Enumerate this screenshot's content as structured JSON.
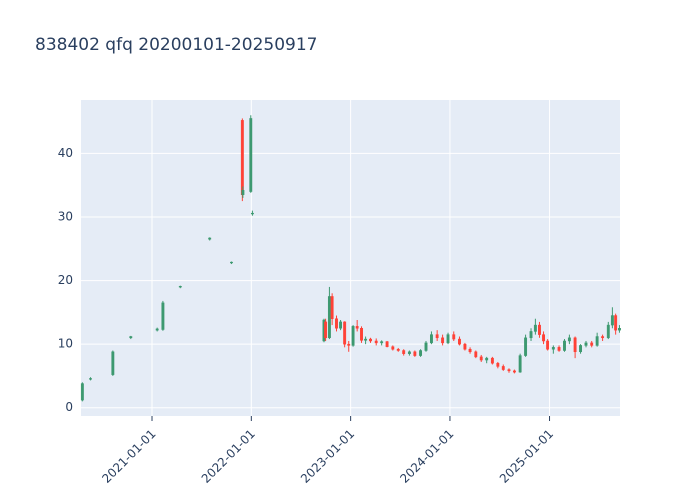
{
  "chart_data": {
    "type": "candlestick",
    "title": "838402 qfq 20200101-20250917",
    "increasing_color": "#3d9970",
    "decreasing_color": "#ff4136",
    "x": [
      "2020-04-20",
      "2020-05-20",
      "2020-08-10",
      "2020-10-15",
      "2021-01-20",
      "2021-02-10",
      "2021-04-15",
      "2021-08-01",
      "2021-10-20",
      "2021-11-29",
      "2021-12-01",
      "2021-12-30",
      "2022-01-05",
      "2022-09-25",
      "2022-10-01",
      "2022-10-15",
      "2022-10-25",
      "2022-11-10",
      "2022-11-25",
      "2022-12-10",
      "2022-12-25",
      "2023-01-10",
      "2023-01-25",
      "2023-02-10",
      "2023-02-25",
      "2023-03-15",
      "2023-04-05",
      "2023-04-25",
      "2023-05-15",
      "2023-06-05",
      "2023-06-25",
      "2023-07-15",
      "2023-08-05",
      "2023-08-25",
      "2023-09-15",
      "2023-10-05",
      "2023-10-25",
      "2023-11-15",
      "2023-12-05",
      "2023-12-25",
      "2024-01-15",
      "2024-02-05",
      "2024-02-25",
      "2024-03-15",
      "2024-04-05",
      "2024-04-25",
      "2024-05-15",
      "2024-06-05",
      "2024-06-25",
      "2024-07-15",
      "2024-08-05",
      "2024-08-25",
      "2024-09-15",
      "2024-10-05",
      "2024-10-25",
      "2024-11-10",
      "2024-11-25",
      "2024-12-10",
      "2024-12-25",
      "2025-01-15",
      "2025-02-05",
      "2025-02-25",
      "2025-03-15",
      "2025-04-05",
      "2025-04-25",
      "2025-05-15",
      "2025-06-05",
      "2025-06-25",
      "2025-07-15",
      "2025-08-05",
      "2025-08-20",
      "2025-09-01",
      "2025-09-15"
    ],
    "open": [
      1.2,
      4.5,
      5.2,
      11.0,
      12.2,
      12.3,
      19.0,
      26.5,
      22.8,
      45.2,
      33.5,
      34.0,
      30.5,
      10.5,
      13.5,
      11.0,
      17.5,
      14.0,
      12.5,
      13.5,
      10.0,
      9.8,
      12.8,
      12.5,
      10.6,
      10.8,
      10.5,
      10.2,
      10.4,
      9.6,
      9.2,
      9.0,
      8.5,
      8.8,
      8.2,
      9.0,
      10.2,
      11.5,
      11.0,
      10.2,
      11.5,
      10.8,
      10.0,
      9.2,
      8.8,
      8.0,
      7.5,
      7.8,
      7.0,
      6.5,
      6.0,
      5.8,
      5.6,
      8.2,
      11.0,
      12.0,
      13.0,
      11.5,
      10.5,
      9.2,
      9.5,
      9.0,
      10.5,
      11.0,
      8.8,
      9.8,
      10.2,
      9.8,
      11.2,
      11.0,
      13.0,
      14.5,
      12.2
    ],
    "high": [
      4.0,
      4.8,
      9.0,
      11.3,
      12.6,
      16.8,
      19.2,
      26.8,
      23.0,
      45.5,
      34.8,
      46.0,
      31.0,
      14.0,
      14.0,
      19.0,
      18.0,
      14.5,
      13.8,
      13.6,
      10.5,
      13.0,
      13.8,
      12.8,
      11.2,
      11.0,
      10.9,
      10.6,
      10.5,
      9.8,
      9.4,
      9.2,
      9.0,
      9.0,
      9.2,
      10.5,
      12.0,
      12.2,
      11.5,
      11.8,
      12.0,
      11.2,
      10.2,
      9.5,
      9.0,
      8.3,
      8.0,
      8.0,
      7.2,
      6.8,
      6.2,
      6.0,
      8.5,
      11.5,
      12.5,
      14.0,
      13.5,
      12.0,
      10.8,
      9.8,
      9.8,
      10.8,
      11.5,
      11.2,
      10.0,
      10.5,
      10.5,
      11.8,
      11.5,
      13.5,
      15.8,
      14.8,
      13.0
    ],
    "low": [
      1.0,
      4.3,
      5.0,
      10.8,
      12.0,
      12.1,
      18.8,
      26.3,
      22.6,
      32.5,
      33.0,
      33.8,
      30.2,
      10.3,
      10.5,
      10.8,
      13.0,
      12.0,
      12.2,
      9.5,
      8.8,
      9.6,
      12.0,
      10.2,
      10.0,
      10.2,
      9.8,
      9.8,
      9.5,
      9.0,
      8.8,
      8.2,
      8.2,
      8.0,
      8.0,
      8.8,
      10.0,
      10.5,
      9.8,
      10.0,
      10.5,
      9.8,
      9.0,
      8.5,
      7.8,
      7.2,
      7.0,
      6.8,
      6.2,
      5.8,
      5.5,
      5.4,
      5.5,
      8.0,
      10.5,
      11.5,
      11.0,
      10.0,
      9.0,
      8.5,
      8.8,
      8.8,
      10.0,
      7.8,
      8.5,
      9.5,
      9.5,
      9.6,
      10.5,
      10.8,
      12.5,
      11.5,
      11.8
    ],
    "close": [
      3.8,
      4.6,
      8.8,
      11.2,
      12.4,
      16.5,
      19.1,
      26.7,
      22.9,
      33.5,
      34.2,
      45.5,
      30.6,
      13.8,
      11.0,
      17.5,
      14.0,
      12.5,
      13.5,
      10.0,
      9.8,
      12.8,
      12.5,
      10.6,
      10.8,
      10.5,
      10.2,
      10.4,
      9.6,
      9.2,
      9.0,
      8.5,
      8.8,
      8.2,
      9.0,
      10.2,
      11.5,
      11.0,
      10.2,
      11.5,
      10.8,
      10.0,
      9.2,
      8.8,
      8.0,
      7.5,
      7.8,
      7.0,
      6.5,
      6.0,
      5.8,
      5.6,
      8.2,
      11.0,
      12.0,
      13.0,
      11.5,
      10.5,
      9.2,
      9.5,
      9.0,
      10.5,
      11.0,
      8.8,
      9.8,
      10.2,
      9.8,
      11.2,
      11.0,
      13.0,
      14.5,
      12.2,
      12.5
    ],
    "xlim": [
      "2020-04-15",
      "2025-09-17"
    ],
    "xticks": [
      "2021-01-01",
      "2022-01-01",
      "2023-01-01",
      "2024-01-01",
      "2025-01-01"
    ],
    "ylim": [
      -1.3,
      48.4
    ],
    "yticks": [
      0,
      10,
      20,
      30,
      40
    ],
    "grid": true
  }
}
